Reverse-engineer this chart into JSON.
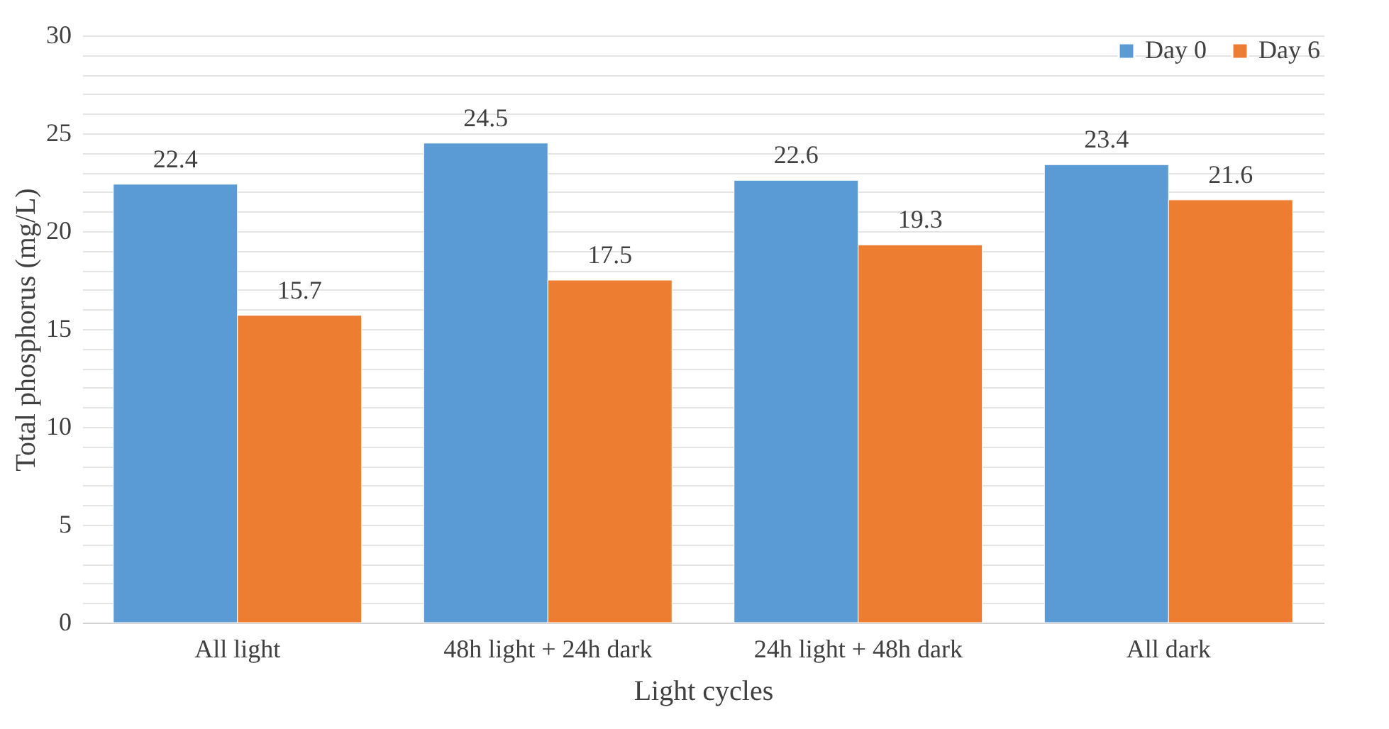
{
  "chart_data": {
    "type": "bar",
    "xlabel": "Light cycles",
    "ylabel": "Total phosphorus (mg/L)",
    "categories": [
      "All light",
      "48h light + 24h dark",
      "24h light + 48h dark",
      "All dark"
    ],
    "series": [
      {
        "name": "Day 0",
        "color": "#5b9bd5",
        "values": [
          22.4,
          24.5,
          22.6,
          23.4
        ]
      },
      {
        "name": "Day 6",
        "color": "#ed7d31",
        "values": [
          15.7,
          17.5,
          19.3,
          21.6
        ]
      }
    ],
    "ylim": [
      0,
      30
    ],
    "yticks": [
      0,
      {
        "value": 1,
        "label": null
      },
      {
        "value": 2,
        "label": null
      },
      {
        "value": 3,
        "label": null
      },
      {
        "value": 4,
        "label": null
      },
      5,
      {
        "value": 6,
        "label": null
      },
      {
        "value": 7,
        "label": null
      },
      {
        "value": 8,
        "label": null
      },
      {
        "value": 9,
        "label": null
      },
      10,
      {
        "value": 11,
        "label": null
      },
      {
        "value": 12,
        "label": null
      },
      {
        "value": 13,
        "label": null
      },
      {
        "value": 14,
        "label": null
      },
      15,
      {
        "value": 16,
        "label": null
      },
      {
        "value": 17,
        "label": null
      },
      {
        "value": 18,
        "label": null
      },
      {
        "value": 19,
        "label": null
      },
      20,
      {
        "value": 21,
        "label": null
      },
      {
        "value": 22,
        "label": null
      },
      {
        "value": 23,
        "label": null
      },
      {
        "value": 24,
        "label": null
      },
      25,
      {
        "value": 26,
        "label": null
      },
      {
        "value": 27,
        "label": null
      },
      {
        "value": 28,
        "label": null
      },
      {
        "value": 29,
        "label": null
      },
      30
    ],
    "grid": true,
    "legend": "top right",
    "data_labels": true
  }
}
